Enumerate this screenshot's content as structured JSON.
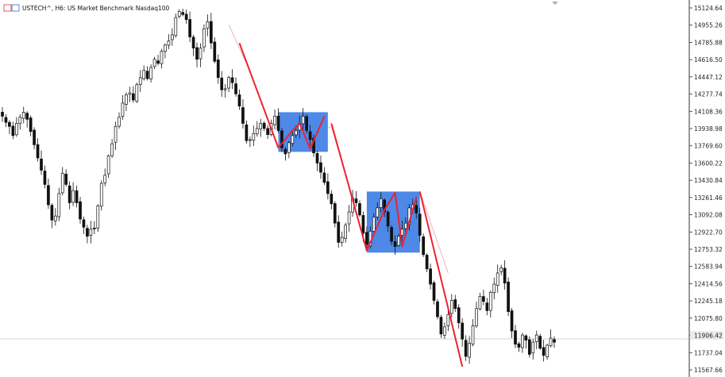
{
  "header": {
    "symbol": "USTECH^",
    "timeframe": "H6",
    "description": "US Market Benchmark Nasdaq100",
    "title": "USTECH^, H6:  US Market Benchmark Nasdaq100"
  },
  "colors": {
    "candle": "#111111",
    "trend_line": "#ee2233",
    "range_box": "#3f7fe6",
    "price_line": "#c8c8c8",
    "axis": "#333333"
  },
  "chart_data": {
    "type": "candlestick",
    "title": "USTECH^, H6:  US Market Benchmark Nasdaq100",
    "y_axis_side": "right",
    "ylim": [
      11480,
      15180
    ],
    "y_ticks": [
      "15124.64",
      "14955.26",
      "14785.88",
      "14616.50",
      "14447.12",
      "14277.74",
      "14108.36",
      "13938.98",
      "13769.60",
      "13600.22",
      "13430.84",
      "13261.46",
      "13092.08",
      "12922.70",
      "12753.32",
      "12583.94",
      "12414.56",
      "12245.18",
      "12075.80",
      "11906.42",
      "11737.04",
      "11567.66"
    ],
    "current_price_label": "11906.42",
    "current_price": 11906.4,
    "closes": [
      14060,
      14000,
      13960,
      13870,
      13990,
      14050,
      14100,
      14030,
      13910,
      13780,
      13650,
      13530,
      13390,
      13190,
      13040,
      13080,
      13300,
      13500,
      13390,
      13210,
      13330,
      13210,
      13050,
      12970,
      12880,
      12950,
      12960,
      13180,
      13400,
      13480,
      13670,
      13790,
      13960,
      14050,
      14190,
      14270,
      14290,
      14220,
      14370,
      14440,
      14510,
      14430,
      14540,
      14620,
      14580,
      14700,
      14760,
      14800,
      14860,
      15030,
      15090,
      15060,
      15010,
      14840,
      14730,
      14620,
      14730,
      14920,
      14990,
      14780,
      14600,
      14440,
      14320,
      14330,
      14440,
      14390,
      14280,
      14160,
      13990,
      13820,
      13830,
      13890,
      13940,
      13990,
      13940,
      13880,
      13990,
      14060,
      13920,
      13750,
      13690,
      13800,
      13870,
      13920,
      13990,
      14060,
      13920,
      13830,
      13700,
      13600,
      13510,
      13410,
      13300,
      13200,
      13010,
      12820,
      12870,
      12990,
      13120,
      13260,
      13210,
      13090,
      12910,
      12800,
      12930,
      13070,
      13160,
      13250,
      13120,
      12980,
      12830,
      12780,
      12880,
      12950,
      13010,
      13160,
      13190,
      13110,
      12890,
      12700,
      12560,
      12410,
      12250,
      12090,
      11920,
      11990,
      12110,
      12250,
      12170,
      12030,
      11870,
      11700,
      11830,
      12000,
      12170,
      12290,
      12240,
      12150,
      12330,
      12410,
      12520,
      12570,
      12420,
      12140,
      11950,
      11820,
      11790,
      11910,
      11860,
      11720,
      11840,
      11910,
      11780,
      11710,
      11810,
      11880,
      11840
    ],
    "annotations": {
      "range_boxes": [
        {
          "start_index": 78,
          "end_index": 92,
          "low": 13710,
          "high": 14100
        },
        {
          "start_index": 103,
          "end_index": 118,
          "low": 12720,
          "high": 13320
        }
      ],
      "trend_lines": [
        {
          "points": [
            [
              67,
              14780
            ],
            [
              78,
              13750
            ],
            [
              82,
              13920
            ],
            [
              84,
              13990
            ],
            [
              87,
              13740
            ],
            [
              91,
              14060
            ]
          ]
        },
        {
          "points": [
            [
              93,
              13990
            ],
            [
              103,
              12740
            ],
            [
              108,
              13140
            ],
            [
              111,
              13310
            ],
            [
              113,
              12780
            ],
            [
              117,
              13260
            ]
          ]
        },
        {
          "points": [
            [
              118,
              13320
            ],
            [
              130,
              11600
            ]
          ]
        }
      ],
      "faint_projection": {
        "points": [
          [
            64,
            14960
          ],
          [
            70,
            14500
          ],
          [
            78,
            13760
          ],
          [
            93,
            13960
          ],
          [
            103,
            12760
          ],
          [
            118,
            13320
          ],
          [
            126,
            12520
          ]
        ]
      }
    }
  }
}
